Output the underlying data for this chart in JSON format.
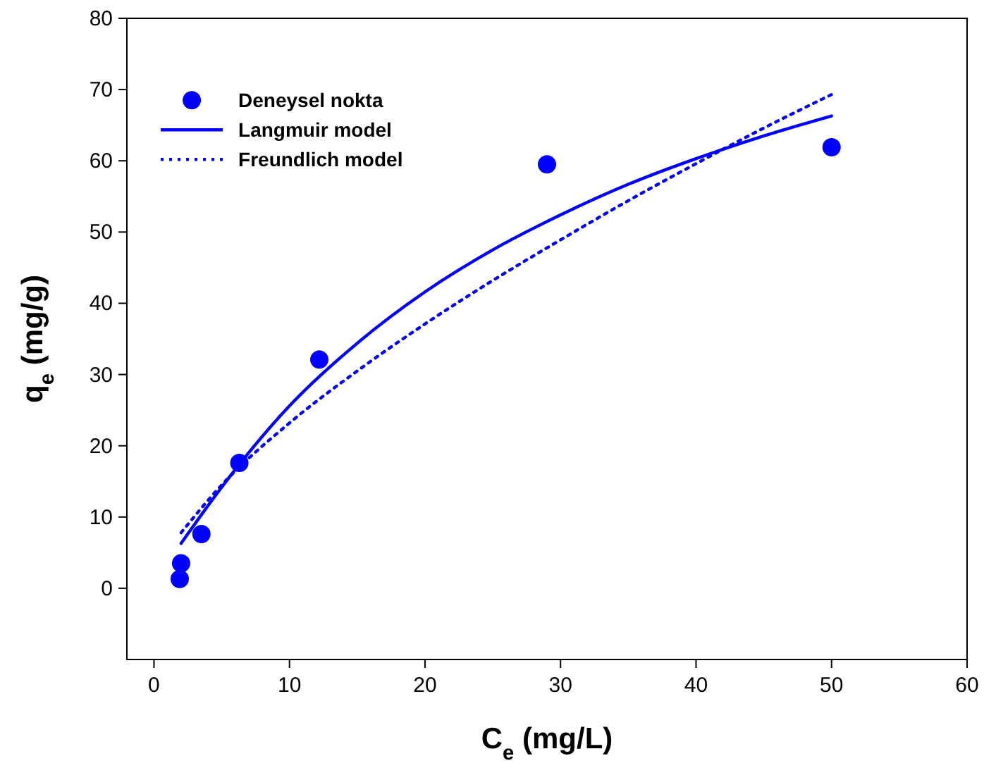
{
  "chart_data": {
    "type": "line",
    "xlabel": "C$_{e}$ (mg/L)",
    "ylabel": "q$_{e}$ (mg/g)",
    "xlim": [
      -2,
      60
    ],
    "ylim": [
      -10,
      80
    ],
    "xticks": [
      0,
      10,
      20,
      30,
      40,
      50,
      60
    ],
    "yticks": [
      0,
      10,
      20,
      30,
      40,
      50,
      60,
      70,
      80
    ],
    "grid": false,
    "legend": "top left",
    "series": [
      {
        "name": "Deneysel nokta",
        "type": "scatter",
        "marker": "circle",
        "color": "#0000ff",
        "x": [
          1.9,
          2.0,
          3.5,
          6.3,
          12.2,
          29,
          50
        ],
        "values": [
          1.3,
          3.5,
          7.6,
          17.6,
          32.1,
          59.5,
          61.9
        ]
      },
      {
        "name": "Langmuir model",
        "line_style": "solid",
        "color": "#0000ff",
        "x": [
          2,
          5,
          10,
          15,
          20,
          25,
          30,
          35,
          40,
          45,
          50
        ],
        "values": [
          6.3,
          14.2,
          25.6,
          34.4,
          41.6,
          47.5,
          52.4,
          56.7,
          60.3,
          63.5,
          66.3
        ]
      },
      {
        "name": "Freundlich model",
        "line_style": "dotted",
        "color": "#0000ff",
        "x": [
          2,
          5,
          10,
          15,
          20,
          25,
          30,
          35,
          40,
          45,
          50
        ],
        "values": [
          7.8,
          14.5,
          23.2,
          30.5,
          37.1,
          43.2,
          48.9,
          54.4,
          59.6,
          64.6,
          69.3
        ]
      }
    ]
  }
}
